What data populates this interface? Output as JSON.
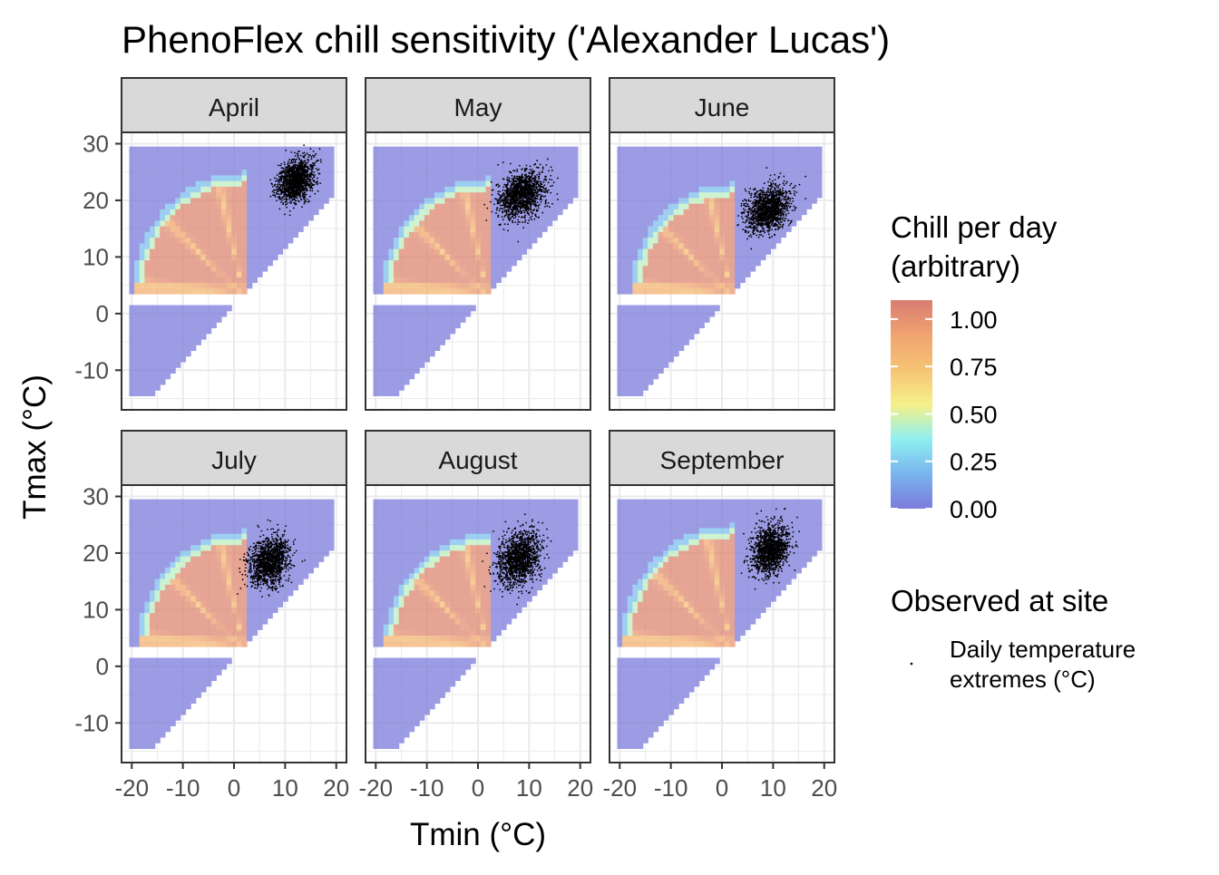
{
  "chart_data": {
    "type": "heatmap",
    "title": "PhenoFlex chill sensitivity ('Alexander Lucas')",
    "xlabel": "Tmin (°C)",
    "ylabel": "Tmax (°C)",
    "xlim": [
      -22,
      22
    ],
    "ylim": [
      -17,
      32
    ],
    "x_ticks": [
      -20,
      -10,
      0,
      10,
      20
    ],
    "y_ticks": [
      -10,
      0,
      10,
      20,
      30
    ],
    "x_tick_labels": [
      "-20",
      "-10",
      "0",
      "10",
      "20"
    ],
    "y_tick_labels": [
      "-10",
      "0",
      "10",
      "20",
      "30"
    ],
    "grid": true,
    "facets": [
      "April",
      "May",
      "June",
      "July",
      "August",
      "September"
    ],
    "heatmap": {
      "description_scale": "Chill per day (arbitrary)",
      "tmin_range": [
        -20,
        19
      ],
      "tmax_range": [
        -14,
        29
      ],
      "cell_size": 1,
      "gap_tmax": [
        2,
        3
      ],
      "fan_center": [
        2,
        3
      ],
      "fan_radius_by_month": {
        "April": 22,
        "May": 21,
        "June": 20,
        "July": 21,
        "August": 20.5,
        "September": 22
      }
    },
    "observations": [
      {
        "month": "April",
        "tmin_mean": 12,
        "tmax_mean": 23.5,
        "tmin_sd": 3.2,
        "tmax_sd": 3.3,
        "n": 1400
      },
      {
        "month": "May",
        "tmin_mean": 8.5,
        "tmax_mean": 21,
        "tmin_sd": 4,
        "tmax_sd": 3.6,
        "n": 1400
      },
      {
        "month": "June",
        "tmin_mean": 9,
        "tmax_mean": 18.5,
        "tmin_sd": 3.8,
        "tmax_sd": 3.5,
        "n": 1400
      },
      {
        "month": "July",
        "tmin_mean": 7,
        "tmax_mean": 18.5,
        "tmin_sd": 3.6,
        "tmax_sd": 4,
        "n": 1400
      },
      {
        "month": "August",
        "tmin_mean": 8,
        "tmax_mean": 19,
        "tmin_sd": 3.8,
        "tmax_sd": 4.2,
        "n": 1400
      },
      {
        "month": "September",
        "tmin_mean": 9.5,
        "tmax_mean": 20.5,
        "tmin_sd": 3.2,
        "tmax_sd": 3.8,
        "n": 1400
      }
    ],
    "legend": {
      "fill_title": "Chill per day\n(arbitrary)",
      "fill_title_lines": [
        "Chill per day",
        "(arbitrary)"
      ],
      "fill_breaks": [
        1.0,
        0.75,
        0.5,
        0.25,
        0.0
      ],
      "fill_labels": [
        "1.00",
        "0.75",
        "0.50",
        "0.25",
        "0.00"
      ],
      "fill_range": [
        0,
        1.1
      ],
      "colors": [
        "#7c7cdb",
        "#79b4ee",
        "#8ff0f0",
        "#f7f08a",
        "#f5c374",
        "#f0a370",
        "#d77d72"
      ],
      "points_title": "Observed at site",
      "points_label_lines": [
        "Daily temperature",
        "extremes (°C)"
      ],
      "placement": "right"
    }
  }
}
